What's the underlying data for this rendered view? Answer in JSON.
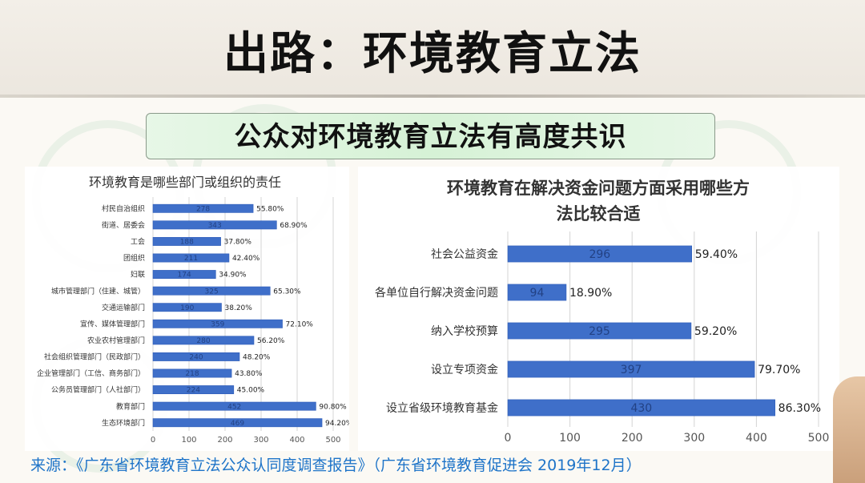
{
  "page": {
    "title": "出路：环境教育立法",
    "subtitle": "公众对环境教育立法有高度共识",
    "source": "来源：《广东省环境教育立法公众认同度调查报告》（广东省环境教育促进会 2019年12月）"
  },
  "colors": {
    "bar": "#3f6fc9",
    "bar_dark": "#2f5db8",
    "subtitle_bg": "#d6f2d6",
    "source_text": "#1e74c8"
  },
  "chart_data": [
    {
      "type": "bar",
      "orientation": "horizontal",
      "title": "环境教育是哪些部门或组织的责任",
      "categories": [
        "村民自治组织",
        "街道、居委会",
        "工会",
        "团组织",
        "妇联",
        "城市管理部门（住建、城管）",
        "交通运输部门",
        "宣传、媒体管理部门",
        "农业农村管理部门",
        "社会组织管理部门（民政部门）",
        "企业管理部门（工信、商务部门）",
        "公务员管理部门（人社部门）",
        "教育部门",
        "生态环境部门"
      ],
      "values": [
        278,
        343,
        188,
        211,
        174,
        325,
        190,
        359,
        280,
        240,
        218,
        224,
        452,
        469
      ],
      "percent_labels": [
        "55.80%",
        "68.90%",
        "37.80%",
        "42.40%",
        "34.90%",
        "65.30%",
        "38.20%",
        "72.10%",
        "56.20%",
        "48.20%",
        "43.80%",
        "45.00%",
        "90.80%",
        "94.20%"
      ],
      "xlim": [
        0,
        500
      ],
      "xticks": [
        0,
        100,
        200,
        300,
        400,
        500
      ],
      "grid": true
    },
    {
      "type": "bar",
      "orientation": "horizontal",
      "title": "环境教育在解决资金问题方面采用哪些方法比较合适",
      "title_lines": [
        "环境教育在解决资金问题方面采用哪些方",
        "法比较合适"
      ],
      "categories": [
        "社会公益资金",
        "各单位自行解决资金问题",
        "纳入学校预算",
        "设立专项资金",
        "设立省级环境教育基金"
      ],
      "values": [
        296,
        94,
        295,
        397,
        430
      ],
      "percent_labels": [
        "59.40%",
        "18.90%",
        "59.20%",
        "79.70%",
        "86.30%"
      ],
      "xlim": [
        0,
        500
      ],
      "xticks": [
        0,
        100,
        200,
        300,
        400,
        500
      ],
      "grid": true
    }
  ]
}
